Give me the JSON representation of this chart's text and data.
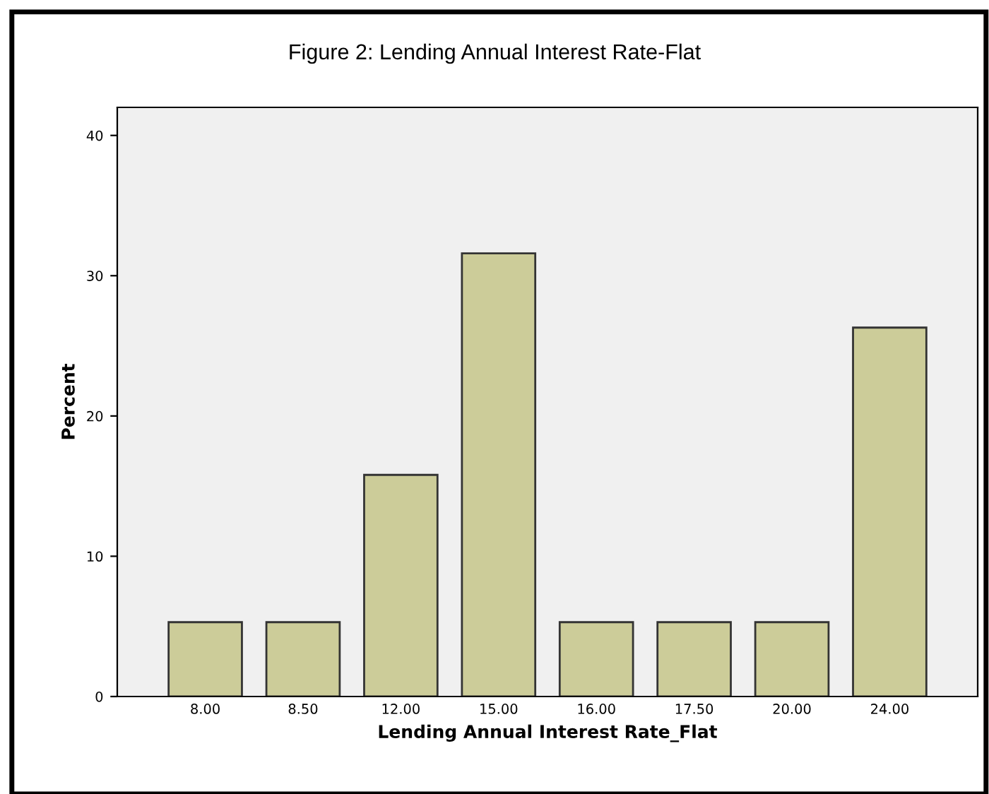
{
  "chart_data": {
    "type": "bar",
    "title": "Figure 2: Lending Annual Interest Rate-Flat",
    "xlabel": "Lending Annual Interest Rate_Flat",
    "ylabel": "Percent",
    "categories": [
      "8.00",
      "8.50",
      "12.00",
      "15.00",
      "16.00",
      "17.50",
      "20.00",
      "24.00"
    ],
    "values": [
      5.3,
      5.3,
      15.8,
      31.6,
      5.3,
      5.3,
      5.3,
      26.3
    ],
    "color": "#cccc99",
    "ylim": [
      0,
      42
    ],
    "yticks": [
      0,
      10,
      20,
      30,
      40
    ],
    "grid": false,
    "legend": false
  }
}
